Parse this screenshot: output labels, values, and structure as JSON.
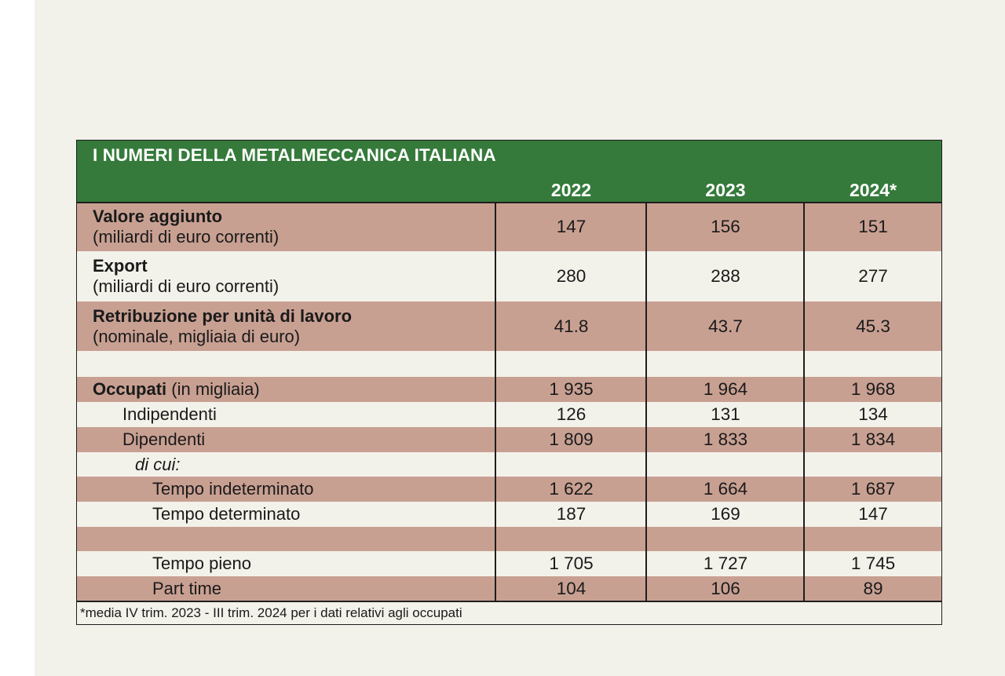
{
  "table": {
    "title": "I NUMERI DELLA METALMECCANICA ITALIANA",
    "years": [
      "2022",
      "2023",
      "2024*"
    ],
    "rows": [
      {
        "label_bold": "Valore aggiunto",
        "label_sub": "(miliardi di euro correnti)",
        "values": [
          "147",
          "156",
          "151"
        ]
      },
      {
        "label_bold": "Export",
        "label_sub": "(miliardi di euro correnti)",
        "values": [
          "280",
          "288",
          "277"
        ]
      },
      {
        "label_bold": "Retribuzione per unità di lavoro",
        "label_sub": "(nominale, migliaia di euro)",
        "values": [
          "41.8",
          "43.7",
          "45.3"
        ]
      },
      {
        "label_bold": "Occupati",
        "label_rest": " (in migliaia)",
        "values": [
          "1 935",
          "1 964",
          "1 968"
        ]
      },
      {
        "label": "Indipendenti",
        "values": [
          "126",
          "131",
          "134"
        ]
      },
      {
        "label": "Dipendenti",
        "values": [
          "1 809",
          "1 833",
          "1 834"
        ]
      },
      {
        "label": "di cui:"
      },
      {
        "label": "Tempo indeterminato",
        "values": [
          "1 622",
          "1 664",
          "1 687"
        ]
      },
      {
        "label": "Tempo determinato",
        "values": [
          "187",
          "169",
          "147"
        ]
      },
      {
        "label": "Tempo pieno",
        "values": [
          "1 705",
          "1 727",
          "1 745"
        ]
      },
      {
        "label": "Part time",
        "values": [
          "104",
          "106",
          "89"
        ]
      }
    ],
    "footnote": "*media IV trim. 2023 - III trim. 2024 per i dati relativi agli occupati"
  },
  "colors": {
    "header_green": "#357a3b",
    "row_shade": "#c8a092",
    "row_plain": "#f3f2ea"
  }
}
